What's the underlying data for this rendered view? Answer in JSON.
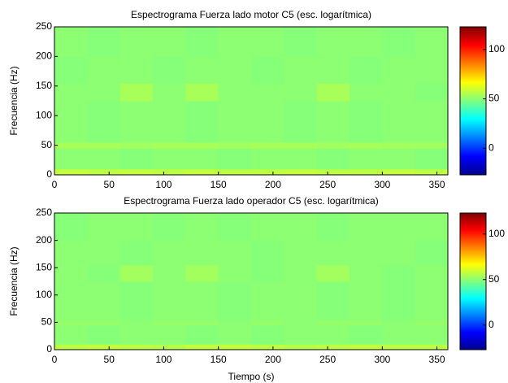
{
  "chart_data": [
    {
      "type": "heatmap",
      "title": "Espectrograma Fuerza lado motor C5 (esc. logarítmica)",
      "ylabel": "Frecuencia (Hz)",
      "colormap": "jet",
      "x_edges": [
        0,
        30,
        60,
        90,
        120,
        150,
        180,
        210,
        240,
        270,
        300,
        330,
        360
      ],
      "y_edges": [
        0,
        10,
        45,
        55,
        125,
        155,
        200,
        250
      ],
      "z": [
        [
          58,
          57,
          58,
          57,
          58,
          57,
          57,
          58,
          57,
          57,
          58,
          57
        ],
        [
          50,
          50,
          49,
          50,
          50,
          49,
          50,
          50,
          49,
          50,
          50,
          49
        ],
        [
          54,
          54,
          53,
          54,
          54,
          53,
          54,
          54,
          53,
          54,
          53,
          53
        ],
        [
          50,
          49,
          50,
          50,
          49,
          50,
          50,
          49,
          50,
          49,
          50,
          50
        ],
        [
          50,
          50,
          54,
          50,
          54,
          50,
          50,
          50,
          54,
          50,
          50,
          49
        ],
        [
          49,
          50,
          50,
          49,
          50,
          50,
          49,
          50,
          50,
          49,
          50,
          50
        ],
        [
          50,
          49,
          50,
          50,
          49,
          50,
          50,
          49,
          50,
          50,
          49,
          50
        ]
      ],
      "xlim": [
        0,
        360
      ],
      "ylim": [
        0,
        250
      ],
      "xticks": [
        0,
        50,
        100,
        150,
        200,
        250,
        300,
        350
      ],
      "yticks": [
        0,
        50,
        100,
        150,
        200,
        250
      ],
      "clim": [
        -27,
        123
      ],
      "cticks": [
        0,
        50,
        100
      ]
    },
    {
      "type": "heatmap",
      "title": "Espectrograma Fuerza lado operador C5 (esc. logarítmica)",
      "ylabel": "Frecuencia (Hz)",
      "xlabel": "Tiempo (s)",
      "colormap": "jet",
      "x_edges": [
        0,
        30,
        60,
        90,
        120,
        150,
        180,
        210,
        240,
        270,
        300,
        330,
        360
      ],
      "y_edges": [
        0,
        10,
        45,
        55,
        125,
        155,
        200,
        250
      ],
      "z": [
        [
          57,
          58,
          57,
          56,
          58,
          58,
          57,
          56,
          57,
          58,
          57,
          57
        ],
        [
          50,
          49,
          50,
          50,
          49,
          50,
          49,
          50,
          50,
          49,
          50,
          50
        ],
        [
          51,
          51,
          50,
          51,
          51,
          50,
          51,
          50,
          51,
          51,
          50,
          51
        ],
        [
          50,
          50,
          49,
          50,
          50,
          49,
          50,
          50,
          49,
          50,
          49,
          50
        ],
        [
          50,
          49,
          53,
          50,
          53,
          50,
          49,
          50,
          53,
          50,
          49,
          50
        ],
        [
          50,
          50,
          49,
          50,
          50,
          50,
          49,
          50,
          50,
          50,
          50,
          49
        ],
        [
          49,
          50,
          50,
          49,
          50,
          49,
          50,
          50,
          49,
          50,
          50,
          50
        ]
      ],
      "xlim": [
        0,
        360
      ],
      "ylim": [
        0,
        250
      ],
      "xticks": [
        0,
        50,
        100,
        150,
        200,
        250,
        300,
        350
      ],
      "yticks": [
        0,
        50,
        100,
        150,
        200,
        250
      ],
      "clim": [
        -27,
        123
      ],
      "cticks": [
        0,
        50,
        100
      ]
    }
  ]
}
